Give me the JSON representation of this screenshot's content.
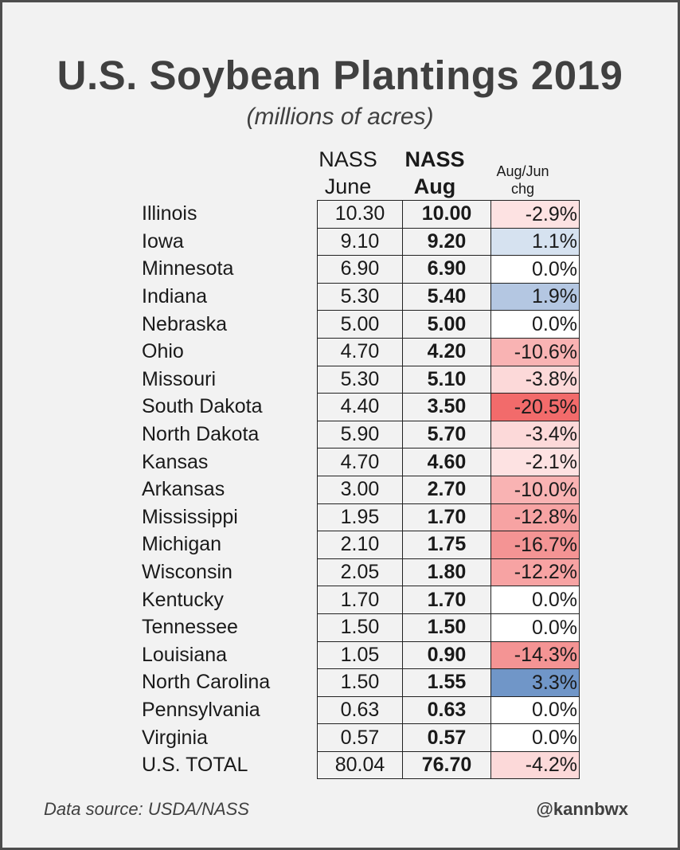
{
  "title": "U.S. Soybean Plantings 2019",
  "subtitle": "(millions of acres)",
  "headers": {
    "june_line1": "NASS",
    "june_line2": "June",
    "aug_line1": "NASS",
    "aug_line2": "Aug",
    "chg_line1": "Aug/Jun",
    "chg_line2": "chg"
  },
  "colors": {
    "increase_strong": "#7096c8",
    "increase_light": "#d6e2f0",
    "decrease_strong": "#f26b6b",
    "decrease_light": "#fde2e2",
    "neutral": "#ffffff"
  },
  "chart_data": {
    "type": "table",
    "title": "U.S. Soybean Plantings 2019",
    "subtitle": "(millions of acres)",
    "columns": [
      "NASS June",
      "NASS Aug",
      "Aug/Jun chg"
    ],
    "rows": [
      {
        "state": "Illinois",
        "june": "10.30",
        "aug": "10.00",
        "chg": "-2.9%",
        "pct": -2.9
      },
      {
        "state": "Iowa",
        "june": "9.10",
        "aug": "9.20",
        "chg": "1.1%",
        "pct": 1.1
      },
      {
        "state": "Minnesota",
        "june": "6.90",
        "aug": "6.90",
        "chg": "0.0%",
        "pct": 0.0
      },
      {
        "state": "Indiana",
        "june": "5.30",
        "aug": "5.40",
        "chg": "1.9%",
        "pct": 1.9
      },
      {
        "state": "Nebraska",
        "june": "5.00",
        "aug": "5.00",
        "chg": "0.0%",
        "pct": 0.0
      },
      {
        "state": "Ohio",
        "june": "4.70",
        "aug": "4.20",
        "chg": "-10.6%",
        "pct": -10.6
      },
      {
        "state": "Missouri",
        "june": "5.30",
        "aug": "5.10",
        "chg": "-3.8%",
        "pct": -3.8
      },
      {
        "state": "South Dakota",
        "june": "4.40",
        "aug": "3.50",
        "chg": "-20.5%",
        "pct": -20.5
      },
      {
        "state": "North Dakota",
        "june": "5.90",
        "aug": "5.70",
        "chg": "-3.4%",
        "pct": -3.4
      },
      {
        "state": "Kansas",
        "june": "4.70",
        "aug": "4.60",
        "chg": "-2.1%",
        "pct": -2.1
      },
      {
        "state": "Arkansas",
        "june": "3.00",
        "aug": "2.70",
        "chg": "-10.0%",
        "pct": -10.0
      },
      {
        "state": "Mississippi",
        "june": "1.95",
        "aug": "1.70",
        "chg": "-12.8%",
        "pct": -12.8
      },
      {
        "state": "Michigan",
        "june": "2.10",
        "aug": "1.75",
        "chg": "-16.7%",
        "pct": -16.7
      },
      {
        "state": "Wisconsin",
        "june": "2.05",
        "aug": "1.80",
        "chg": "-12.2%",
        "pct": -12.2
      },
      {
        "state": "Kentucky",
        "june": "1.70",
        "aug": "1.70",
        "chg": "0.0%",
        "pct": 0.0
      },
      {
        "state": "Tennessee",
        "june": "1.50",
        "aug": "1.50",
        "chg": "0.0%",
        "pct": 0.0
      },
      {
        "state": "Louisiana",
        "june": "1.05",
        "aug": "0.90",
        "chg": "-14.3%",
        "pct": -14.3
      },
      {
        "state": "North Carolina",
        "june": "1.50",
        "aug": "1.55",
        "chg": "3.3%",
        "pct": 3.3
      },
      {
        "state": "Pennsylvania",
        "june": "0.63",
        "aug": "0.63",
        "chg": "0.0%",
        "pct": 0.0
      },
      {
        "state": "Virginia",
        "june": "0.57",
        "aug": "0.57",
        "chg": "0.0%",
        "pct": 0.0
      },
      {
        "state": "U.S. TOTAL",
        "june": "80.04",
        "aug": "76.70",
        "chg": "-4.2%",
        "pct": -4.2
      }
    ]
  },
  "footer": {
    "source": "Data source: USDA/NASS",
    "handle": "@kannbwx"
  }
}
